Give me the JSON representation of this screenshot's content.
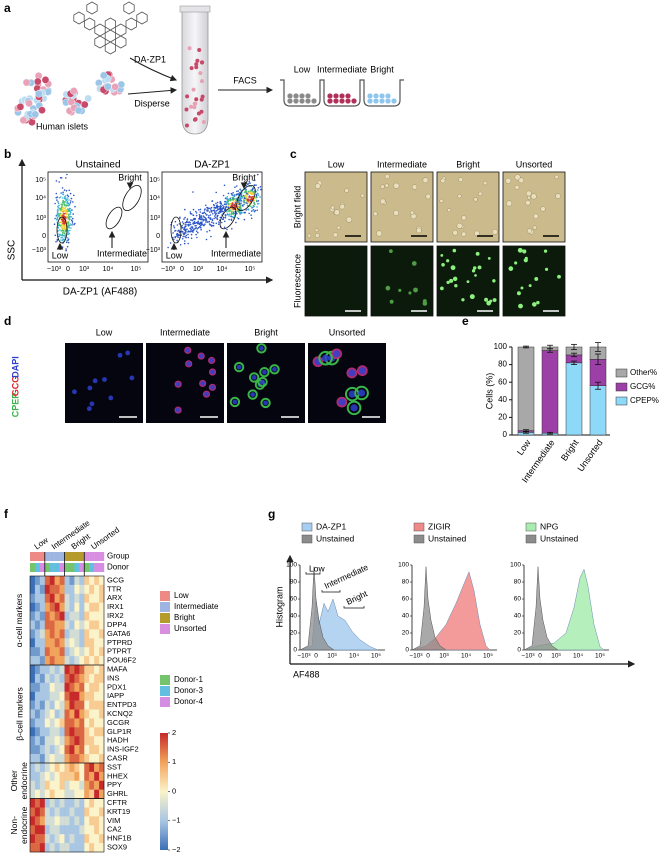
{
  "panels": {
    "a": {
      "label": "a",
      "molecule": "DA-ZP1",
      "source": "Human islets",
      "step": "Disperse",
      "sort": "FACS",
      "fractions": [
        "Low",
        "Intermediate",
        "Bright"
      ]
    },
    "b": {
      "label": "b",
      "plots": [
        "Unstained",
        "DA-ZP1"
      ],
      "y_axis": "SSC",
      "x_axis": "DA-ZP1 (AF488)",
      "yticks": [
        "10⁵",
        "10⁴",
        "10³",
        "0",
        "−10³"
      ],
      "xticks": [
        "−10³",
        "0",
        "10³",
        "10⁴",
        "10⁵"
      ],
      "gates": [
        "Bright",
        "Intermediate",
        "Low"
      ]
    },
    "c": {
      "label": "c",
      "columns": [
        "Low",
        "Intermediate",
        "Bright",
        "Unsorted"
      ],
      "rows": [
        "Bright field",
        "Fluorescence"
      ]
    },
    "d": {
      "label": "d",
      "columns": [
        "Low",
        "Intermediate",
        "Bright",
        "Unsorted"
      ],
      "stains": [
        {
          "name": "CPEP",
          "color": "#39b54a"
        },
        {
          "name": "GCG",
          "color": "#e0262a"
        },
        {
          "name": "DAPI",
          "color": "#2e3fcf"
        }
      ]
    },
    "e": {
      "label": "e",
      "chart_data": {
        "type": "bar",
        "stacked": true,
        "ylabel": "Cells (%)",
        "categories": [
          "Low",
          "Intermediate",
          "Bright",
          "Unsorted"
        ],
        "ylim": [
          0,
          100
        ],
        "yticks": [
          0,
          20,
          40,
          60,
          80,
          100
        ],
        "legend": "right",
        "series": [
          {
            "name": "CPEP%",
            "color": "#8ed8f8",
            "values": [
              3,
              2,
              82,
              56
            ],
            "errors": [
              1,
              1,
              2,
              4
            ]
          },
          {
            "name": "GCG%",
            "color": "#9c3fa6",
            "values": [
              2,
              94,
              9,
              30
            ],
            "errors": [
              1,
              2,
              2,
              6
            ]
          },
          {
            "name": "Other%",
            "color": "#a8a8a8",
            "values": [
              95,
              4,
              9,
              14
            ],
            "errors": [
              1,
              2,
              3,
              5
            ]
          }
        ]
      }
    },
    "f": {
      "label": "f",
      "annotation_rows": [
        "Group",
        "Donor"
      ],
      "groups": [
        {
          "name": "Low",
          "color": "#ee8a86"
        },
        {
          "name": "Intermediate",
          "color": "#9db5e0"
        },
        {
          "name": "Bright",
          "color": "#b59b2c"
        },
        {
          "name": "Unsorted",
          "color": "#d98fe0"
        }
      ],
      "donors": [
        {
          "name": "Donor-1",
          "color": "#73c46b"
        },
        {
          "name": "Donor-3",
          "color": "#63bfe0"
        },
        {
          "name": "Donor-4",
          "color": "#d58de4"
        }
      ],
      "column_groups": [
        0,
        0,
        0,
        1,
        1,
        1,
        1,
        2,
        2,
        2,
        2,
        3,
        3,
        3,
        3
      ],
      "column_donors": [
        0,
        1,
        2,
        0,
        1,
        1,
        2,
        0,
        0,
        1,
        2,
        0,
        1,
        2,
        2
      ],
      "clim": [
        -2,
        2
      ],
      "colormap": [
        "#3b6fb6",
        "#a9c6e3",
        "#fbf3c9",
        "#f2a35b",
        "#c62a2a"
      ],
      "colorbar_ticks": [
        2,
        1,
        0,
        {
          "value": -1,
          "label": "−1"
        },
        {
          "value": -2,
          "label": "−2"
        }
      ],
      "gene_groups": [
        {
          "label": [
            "α-cell markers"
          ],
          "genes": [
            {
              "name": "GCG",
              "values": [
                -2,
                -1.5,
                -1,
                1.5,
                2,
                1,
                1.5,
                -1,
                -1.5,
                -0.5,
                -1,
                0.5,
                0,
                0.5,
                0
              ]
            },
            {
              "name": "TTR",
              "values": [
                -2,
                -1,
                -1.5,
                2,
                1.5,
                1.5,
                1,
                -1,
                -1,
                0,
                -0.5,
                0,
                0.5,
                0,
                0.5
              ]
            },
            {
              "name": "ARX",
              "values": [
                -1.5,
                -1,
                -1,
                1.5,
                2,
                1,
                1.5,
                -0.5,
                -1,
                -0.5,
                -1,
                0.5,
                0,
                0,
                0.5
              ]
            },
            {
              "name": "IRX1",
              "values": [
                -2,
                -1.5,
                -1,
                1,
                1.5,
                2,
                1,
                -0.5,
                -1,
                0,
                -1,
                0,
                0.5,
                0.5,
                0
              ]
            },
            {
              "name": "IRX2",
              "values": [
                -1.5,
                -1,
                -1.5,
                1.5,
                1,
                1.5,
                2,
                -1,
                -0.5,
                -0.5,
                -1,
                0.5,
                0,
                0,
                0
              ]
            },
            {
              "name": "DPP4",
              "values": [
                -1,
                -1.5,
                -1,
                1.5,
                1.5,
                1,
                1,
                -0.5,
                -1,
                0,
                -0.5,
                0,
                0.5,
                0.5,
                0
              ]
            },
            {
              "name": "GATA6",
              "values": [
                -1.5,
                -1,
                -0.5,
                1,
                1.5,
                1,
                1.5,
                -1,
                -0.5,
                -0.5,
                -1,
                0.5,
                0,
                0,
                0.5
              ]
            },
            {
              "name": "PTPRD",
              "values": [
                -2,
                -1,
                -1,
                1,
                1,
                1.5,
                1,
                -0.5,
                0,
                -0.5,
                -1,
                0.5,
                0.5,
                0,
                0
              ]
            },
            {
              "name": "PTPRT",
              "values": [
                -1.5,
                -1.5,
                -1,
                1.5,
                1,
                1,
                1.5,
                -1,
                -0.5,
                0,
                -0.5,
                0,
                0.5,
                0,
                0.5
              ]
            },
            {
              "name": "POU6F2",
              "values": [
                -1,
                -1,
                -1.5,
                1,
                1.5,
                1,
                1,
                -0.5,
                -1,
                -0.5,
                0,
                0.5,
                0,
                0.5,
                0
              ]
            }
          ]
        },
        {
          "label": [
            "β-cell markers"
          ],
          "genes": [
            {
              "name": "MAFA",
              "values": [
                -2,
                -1.5,
                -1,
                -1,
                -0.5,
                -1,
                -0.5,
                2,
                1.5,
                2,
                1.5,
                0.5,
                0.5,
                0,
                0.5
              ]
            },
            {
              "name": "INS",
              "values": [
                -2,
                -1,
                -1.5,
                -0.5,
                -1,
                -0.5,
                -1,
                1.5,
                2,
                1.5,
                1,
                0.5,
                0,
                0.5,
                0.5
              ]
            },
            {
              "name": "PDX1",
              "values": [
                -1.5,
                -1.5,
                -1,
                -1,
                0,
                -0.5,
                -0.5,
                2,
                1.5,
                1,
                1.5,
                0,
                0.5,
                0.5,
                0
              ]
            },
            {
              "name": "IAPP",
              "values": [
                -2,
                -1,
                -1,
                -1,
                -0.5,
                -0.5,
                0,
                1.5,
                2,
                2,
                1,
                0.5,
                0.5,
                0,
                0
              ]
            },
            {
              "name": "ENTPD3",
              "values": [
                -1.5,
                -1,
                -1.5,
                -0.5,
                -1,
                0,
                -0.5,
                1,
                2,
                1.5,
                1.5,
                0,
                0.5,
                0.5,
                0.5
              ]
            },
            {
              "name": "KCNQ2",
              "values": [
                -1,
                -1.5,
                -1,
                -0.5,
                0,
                -1,
                -0.5,
                1.5,
                1,
                2,
                1,
                0.5,
                0,
                0,
                0.5
              ]
            },
            {
              "name": "GCGR",
              "values": [
                -1.5,
                -1,
                -1,
                0,
                -0.5,
                0,
                0.5,
                1.5,
                1.5,
                1,
                1.5,
                0,
                0.5,
                0,
                0
              ]
            },
            {
              "name": "GLP1R",
              "values": [
                -2,
                -1.5,
                -1,
                -1,
                -0.5,
                -0.5,
                -1,
                1.5,
                2,
                1.5,
                1.5,
                0.5,
                0,
                0.5,
                0.5
              ]
            },
            {
              "name": "HADH",
              "values": [
                -1.5,
                -1,
                -1.5,
                -0.5,
                -0.5,
                0,
                -0.5,
                1,
                1.5,
                2,
                1.5,
                0.5,
                0.5,
                0,
                0
              ]
            },
            {
              "name": "INS-IGF2",
              "values": [
                -1.5,
                -1.5,
                -1,
                -0.5,
                -1,
                -0.5,
                0,
                1.5,
                2,
                1,
                1.5,
                0,
                0.5,
                0.5,
                0
              ]
            },
            {
              "name": "CASR",
              "values": [
                -1,
                -1,
                -1.5,
                -0.5,
                0,
                -0.5,
                -0.5,
                1,
                1.5,
                1.5,
                1,
                0.5,
                0,
                0,
                0.5
              ]
            }
          ]
        },
        {
          "label": [
            "Other",
            "endocrine"
          ],
          "genes": [
            {
              "name": "SST",
              "values": [
                -1,
                -0.5,
                -1,
                -0.5,
                0,
                0.5,
                0,
                0.5,
                1,
                0.5,
                0,
                1.5,
                2,
                1,
                1.5
              ]
            },
            {
              "name": "HHEX",
              "values": [
                -1,
                -1,
                -0.5,
                0,
                -0.5,
                0,
                0.5,
                0.5,
                0.5,
                1,
                0,
                1.5,
                1,
                2,
                1
              ]
            },
            {
              "name": "PPY",
              "values": [
                -0.5,
                -1,
                -0.5,
                0.5,
                0,
                0,
                0.5,
                -0.5,
                0,
                0,
                -0.5,
                1,
                1.5,
                1,
                2
              ]
            },
            {
              "name": "GHRL",
              "values": [
                -0.5,
                0,
                -0.5,
                0,
                0.5,
                0,
                0,
                -0.5,
                -0.5,
                0,
                0,
                1,
                0.5,
                2,
                1
              ]
            }
          ]
        },
        {
          "label": [
            "Non-",
            "endocrine"
          ],
          "genes": [
            {
              "name": "CFTR",
              "values": [
                2,
                1.5,
                2,
                -1,
                -0.5,
                -1,
                -0.5,
                -1,
                -1,
                -0.5,
                -1,
                0,
                0.5,
                0,
                0
              ]
            },
            {
              "name": "KRT19",
              "values": [
                1.5,
                2,
                1.5,
                -0.5,
                -1,
                -0.5,
                -1,
                -1,
                -0.5,
                -1,
                -1,
                0.5,
                0,
                0,
                0.5
              ]
            },
            {
              "name": "VIM",
              "values": [
                2,
                1.5,
                1,
                -0.5,
                -0.5,
                0,
                -0.5,
                -0.5,
                -1,
                -0.5,
                -1,
                0,
                0.5,
                0.5,
                0
              ]
            },
            {
              "name": "CA2",
              "values": [
                1.5,
                2,
                2,
                -1,
                -0.5,
                -0.5,
                -1,
                -1,
                -1,
                -1,
                -0.5,
                0,
                0,
                0.5,
                0
              ]
            },
            {
              "name": "HNF1B",
              "values": [
                2,
                1.5,
                1.5,
                -0.5,
                -1,
                -0.5,
                0,
                -1,
                -0.5,
                -1,
                -1,
                0.5,
                0,
                0,
                0.5
              ]
            },
            {
              "name": "SOX9",
              "values": [
                1.5,
                1.5,
                2,
                -1,
                -0.5,
                -1,
                -0.5,
                -0.5,
                -1,
                -1,
                -1,
                0,
                0.5,
                0,
                0
              ]
            }
          ]
        }
      ]
    },
    "g": {
      "label": "g",
      "y_axis": "Histogram",
      "x_axis": "AF488",
      "yticks": [
        0,
        20,
        40,
        60,
        80,
        100
      ],
      "xticks": [
        "−10³",
        "0",
        "10³",
        "10⁴",
        "10⁵"
      ],
      "plots": [
        {
          "stain": "DA-ZP1",
          "control": "Unstained",
          "color": "#a7cdf0"
        },
        {
          "stain": "ZIGIR",
          "control": "Unstained",
          "color": "#f08a88"
        },
        {
          "stain": "NPG",
          "control": "Unstained",
          "color": "#a8ecb0"
        }
      ],
      "gates": [
        "Low",
        "Intermediate",
        "Bright"
      ]
    }
  }
}
